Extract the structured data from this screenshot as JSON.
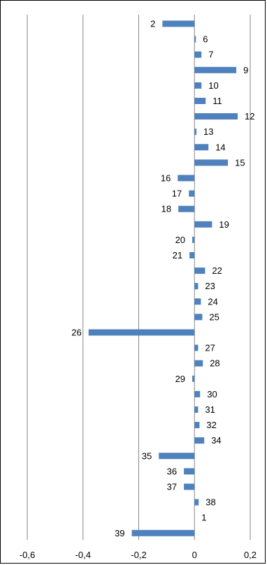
{
  "chart_data": {
    "type": "bar",
    "orientation": "horizontal",
    "title": "",
    "xlabel": "",
    "ylabel": "",
    "xlim": [
      -0.6,
      0.2
    ],
    "x_ticks": [
      -0.6,
      -0.4,
      -0.2,
      0,
      0.2
    ],
    "x_tick_labels": [
      "-0,6",
      "-0,4",
      "-0,2",
      "0",
      "0,2"
    ],
    "grid": "vertical major gridlines",
    "legend": "none",
    "bar_color": "#4F81BD",
    "categories": [
      "2",
      "6",
      "7",
      "9",
      "10",
      "11",
      "12",
      "13",
      "14",
      "15",
      "16",
      "17",
      "18",
      "19",
      "20",
      "21",
      "22",
      "23",
      "24",
      "25",
      "26",
      "27",
      "28",
      "29",
      "30",
      "31",
      "32",
      "34",
      "35",
      "36",
      "37",
      "38",
      "1",
      "39"
    ],
    "values": [
      -0.115,
      0.005,
      0.025,
      0.15,
      0.025,
      0.04,
      0.155,
      0.007,
      0.05,
      0.12,
      -0.06,
      -0.02,
      -0.058,
      0.063,
      -0.008,
      -0.018,
      0.038,
      0.013,
      0.023,
      0.028,
      -0.38,
      0.013,
      0.03,
      -0.008,
      0.02,
      0.013,
      0.018,
      0.035,
      -0.128,
      -0.038,
      -0.038,
      0.015,
      0,
      -0.225
    ]
  }
}
